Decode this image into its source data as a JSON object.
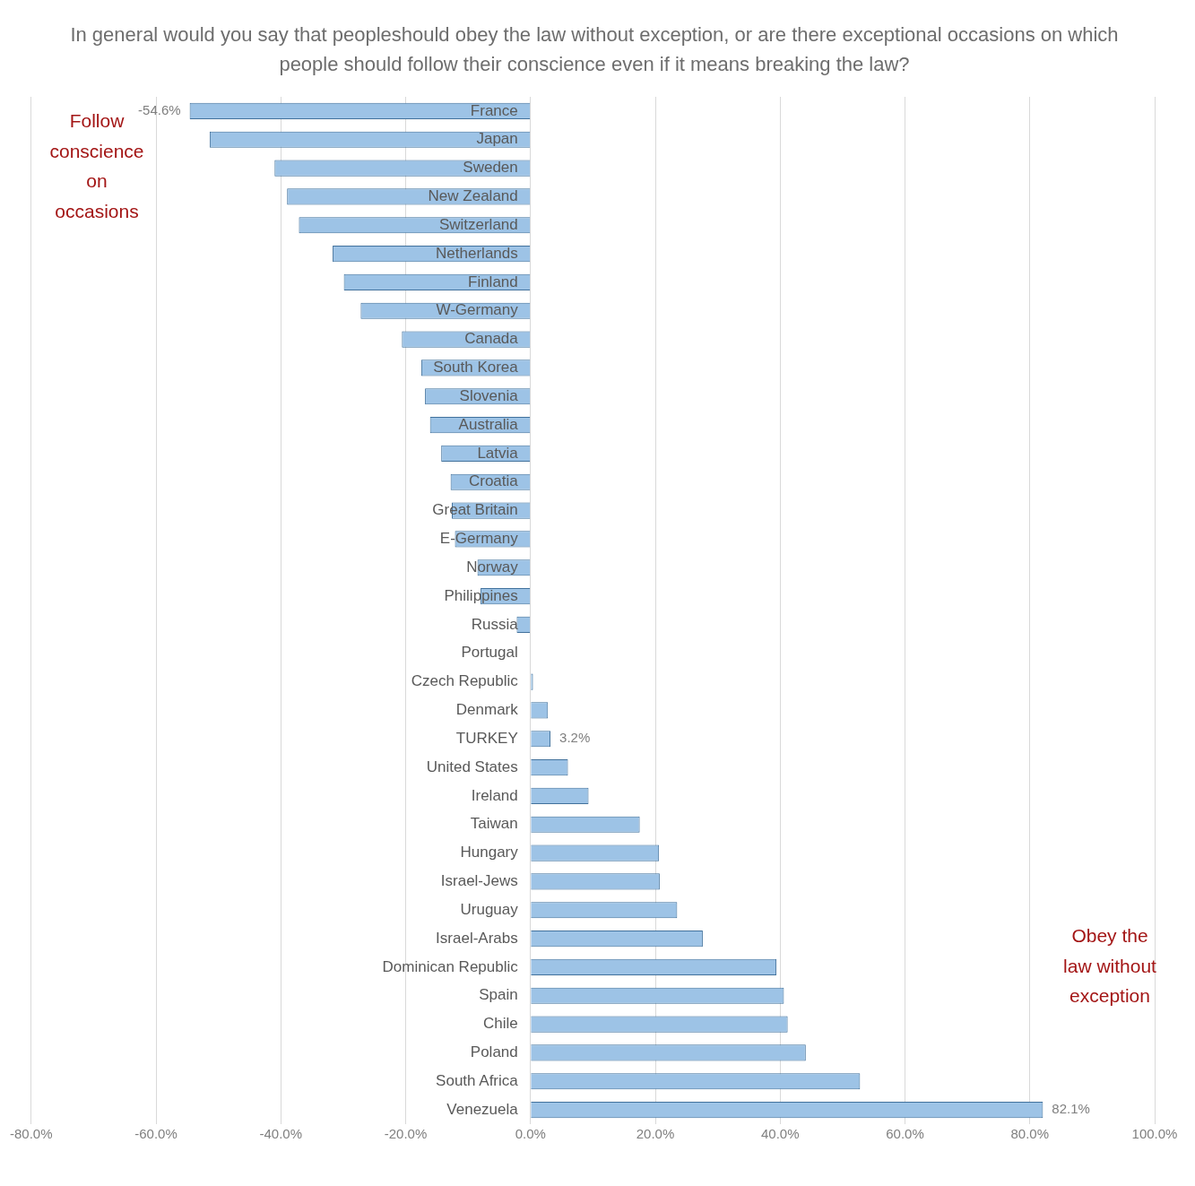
{
  "chart_data": {
    "type": "bar",
    "orientation": "horizontal",
    "title": "In general would you say that peopleshould obey the law without exception, or are there exceptional occasions on which people should follow their conscience  even if it means breaking the law?",
    "categories": [
      "France",
      "Japan",
      "Sweden",
      "New Zealand",
      "Switzerland",
      "Netherlands",
      "Finland",
      "W-Germany",
      "Canada",
      "South Korea",
      "Slovenia",
      "Australia",
      "Latvia",
      "Croatia",
      "Great Britain",
      "E-Germany",
      "Norway",
      "Philippines",
      "Russia",
      "Portugal",
      "Czech Republic",
      "Denmark",
      "TURKEY",
      "United States",
      "Ireland",
      "Taiwan",
      "Hungary",
      "Israel-Jews",
      "Uruguay",
      "Israel-Arabs",
      "Dominican Republic",
      "Spain",
      "Chile",
      "Poland",
      "South Africa",
      "Venezuela"
    ],
    "values": [
      -54.6,
      -51.4,
      -41.0,
      -39.0,
      -37.1,
      -31.7,
      -29.9,
      -27.2,
      -20.6,
      -17.5,
      -16.9,
      -16.1,
      -14.3,
      -12.8,
      -12.6,
      -12.1,
      -8.5,
      -8.0,
      -2.2,
      0,
      0.4,
      2.8,
      3.2,
      6.0,
      9.3,
      17.5,
      20.6,
      20.7,
      23.5,
      27.6,
      39.4,
      40.6,
      41.2,
      44.1,
      52.8,
      82.1
    ],
    "value_labels": [
      "-54.6%",
      null,
      null,
      null,
      null,
      null,
      null,
      null,
      null,
      null,
      null,
      null,
      null,
      null,
      null,
      null,
      null,
      null,
      null,
      null,
      null,
      null,
      "3.2%",
      null,
      null,
      null,
      null,
      null,
      null,
      null,
      null,
      null,
      null,
      null,
      null,
      "82.1%"
    ],
    "color": "#9dc3e6",
    "xlim": [
      -80,
      100
    ],
    "xticks": [
      {
        "value": -80,
        "label": "-80.0%"
      },
      {
        "value": -60,
        "label": "-60.0%"
      },
      {
        "value": -40,
        "label": "-40.0%"
      },
      {
        "value": -20,
        "label": "-20.0%"
      },
      {
        "value": 0,
        "label": "0.0%"
      },
      {
        "value": 20,
        "label": "20.0%"
      },
      {
        "value": 40,
        "label": "40.0%"
      },
      {
        "value": 60,
        "label": "60.0%"
      },
      {
        "value": 80,
        "label": "80.0%"
      },
      {
        "value": 100,
        "label": "100.0%"
      }
    ],
    "grid": "x",
    "legend": false,
    "annotations": [
      "Follow conscience on occasions",
      "Obey the law without exception"
    ]
  }
}
